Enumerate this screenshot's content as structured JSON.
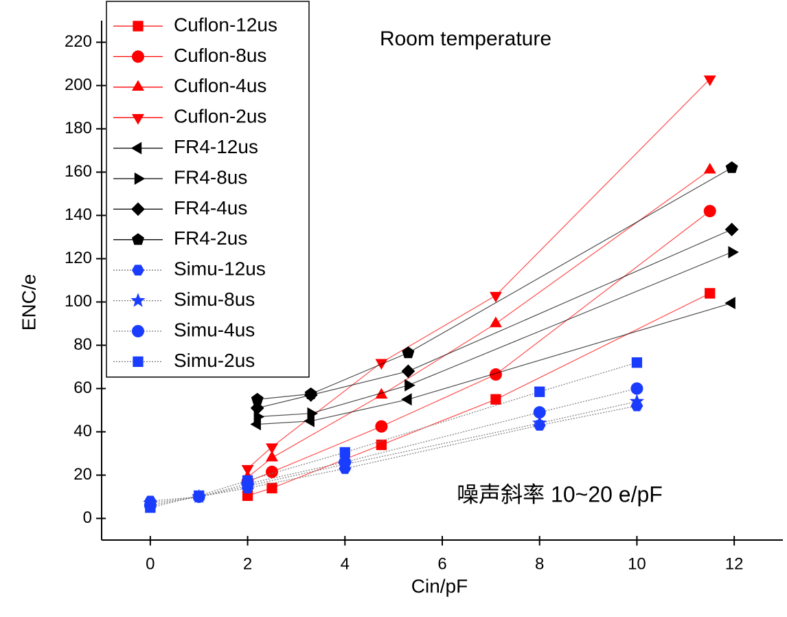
{
  "chart_data": {
    "type": "line",
    "annotations": [
      "Room temperature",
      "噪声斜率 10~20 e/pF"
    ],
    "x_label": "Cin/pF",
    "y_label": "ENC/e",
    "xlim": [
      -1,
      13
    ],
    "ylim": [
      -10,
      230
    ],
    "xticks": [
      0,
      2,
      4,
      6,
      8,
      10,
      12
    ],
    "yticks": [
      0,
      20,
      40,
      60,
      80,
      100,
      120,
      140,
      160,
      180,
      200,
      220
    ],
    "legend": "top-left",
    "series": [
      {
        "name": "Cuflon-12us",
        "color": "#ff0000",
        "marker": "square",
        "linestyle": "solid",
        "x": [
          2,
          2.5,
          4.75,
          7.1,
          11.5
        ],
        "values": [
          10.5,
          14,
          34,
          55,
          104
        ]
      },
      {
        "name": "Cuflon-8us",
        "color": "#ff0000",
        "marker": "circle",
        "linestyle": "solid",
        "x": [
          2,
          2.5,
          4.75,
          7.1,
          11.5
        ],
        "values": [
          17,
          21.5,
          42.5,
          66.5,
          142
        ]
      },
      {
        "name": "Cuflon-4us",
        "color": "#ff0000",
        "marker": "triangle-up",
        "linestyle": "solid",
        "x": [
          2,
          2.5,
          4.75,
          7.1,
          11.5
        ],
        "values": [
          19,
          28,
          57,
          90,
          161
        ]
      },
      {
        "name": "Cuflon-2us",
        "color": "#ff0000",
        "marker": "triangle-down",
        "linestyle": "solid",
        "x": [
          2,
          2.5,
          4.75,
          7.1,
          11.5
        ],
        "values": [
          23,
          33,
          72,
          103,
          203
        ]
      },
      {
        "name": "FR4-12us",
        "color": "#000000",
        "marker": "triangle-left",
        "linestyle": "solid",
        "x": [
          2.2,
          3.3,
          5.3,
          11.95
        ],
        "values": [
          43.5,
          45,
          55,
          99.5
        ]
      },
      {
        "name": "FR4-8us",
        "color": "#000000",
        "marker": "triangle-right",
        "linestyle": "solid",
        "x": [
          2.2,
          3.3,
          5.3,
          11.95
        ],
        "values": [
          47,
          48.5,
          61.5,
          123
        ]
      },
      {
        "name": "FR4-4us",
        "color": "#000000",
        "marker": "diamond",
        "linestyle": "solid",
        "x": [
          2.2,
          3.3,
          5.3,
          11.95
        ],
        "values": [
          51,
          57,
          68,
          133.5
        ]
      },
      {
        "name": "FR4-2us",
        "color": "#000000",
        "marker": "pentagon",
        "linestyle": "solid",
        "x": [
          2.2,
          3.3,
          5.3,
          11.95
        ],
        "values": [
          55,
          57.5,
          76.5,
          162
        ]
      },
      {
        "name": "Simu-12us",
        "color": "#1a3cff",
        "marker": "hexagon",
        "linestyle": "dotted",
        "x": [
          0,
          1,
          2,
          4,
          8,
          10
        ],
        "values": [
          8,
          10,
          14,
          23,
          43,
          52
        ]
      },
      {
        "name": "Simu-8us",
        "color": "#1a3cff",
        "marker": "star",
        "linestyle": "dotted",
        "x": [
          0,
          1,
          2,
          4,
          8,
          10
        ],
        "values": [
          7,
          10,
          15,
          25,
          44,
          54
        ]
      },
      {
        "name": "Simu-4us",
        "color": "#1a3cff",
        "marker": "circle",
        "linestyle": "dotted",
        "x": [
          0,
          1,
          2,
          4,
          8,
          10
        ],
        "values": [
          6,
          10,
          16,
          26,
          49,
          60
        ]
      },
      {
        "name": "Simu-2us",
        "color": "#1a3cff",
        "marker": "square",
        "linestyle": "dotted",
        "x": [
          0,
          1,
          2,
          4,
          8,
          10
        ],
        "values": [
          5,
          10.5,
          17.5,
          30.5,
          58.5,
          72
        ]
      }
    ]
  }
}
